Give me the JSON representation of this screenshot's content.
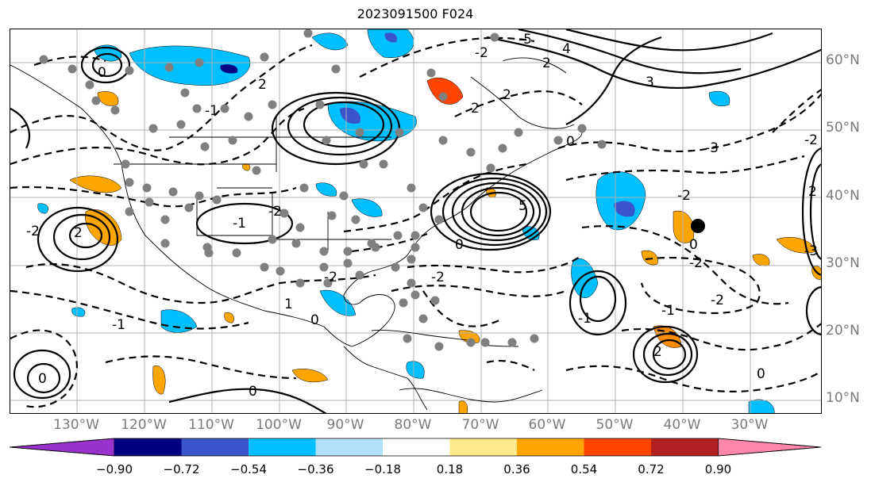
{
  "title": "2023091500 F024",
  "lat_labels": [
    "60°N",
    "50°N",
    "40°N",
    "30°N",
    "20°N",
    "10°N"
  ],
  "lon_labels": [
    "130°W",
    "120°W",
    "110°W",
    "100°W",
    "90°W",
    "80°W",
    "70°W",
    "60°W",
    "50°W",
    "40°W",
    "30°W"
  ],
  "contour_labels": [
    "-5",
    "4",
    "-2",
    "2",
    "3",
    "2",
    "2",
    "0",
    "-2",
    "2",
    "5",
    "-3",
    "-2",
    "-2",
    "0",
    "-2",
    "0",
    "-3",
    "-1",
    "0",
    "-2",
    "-1",
    "-1",
    "1",
    "-2",
    "0",
    "0",
    "2",
    "-1",
    "2",
    "-2",
    "-2",
    "2",
    "0",
    "-1",
    "0"
  ],
  "colorbar": {
    "ticks": [
      "−0.90",
      "−0.72",
      "−0.54",
      "−0.36",
      "−0.18",
      "0.18",
      "0.36",
      "0.54",
      "0.72",
      "0.90"
    ],
    "colors": [
      "#9932cc",
      "#000080",
      "#3a55cc",
      "#00bfff",
      "#b0e0fa",
      "#ffffff",
      "#ffea8a",
      "#ffa500",
      "#ff4500",
      "#b22222",
      "#ff87ab"
    ]
  },
  "colors": {
    "blue_light": "#00bfff",
    "blue_mid": "#3a55cc",
    "orange": "#ffa500",
    "red": "#ff4500",
    "station_dots": "#808080"
  }
}
